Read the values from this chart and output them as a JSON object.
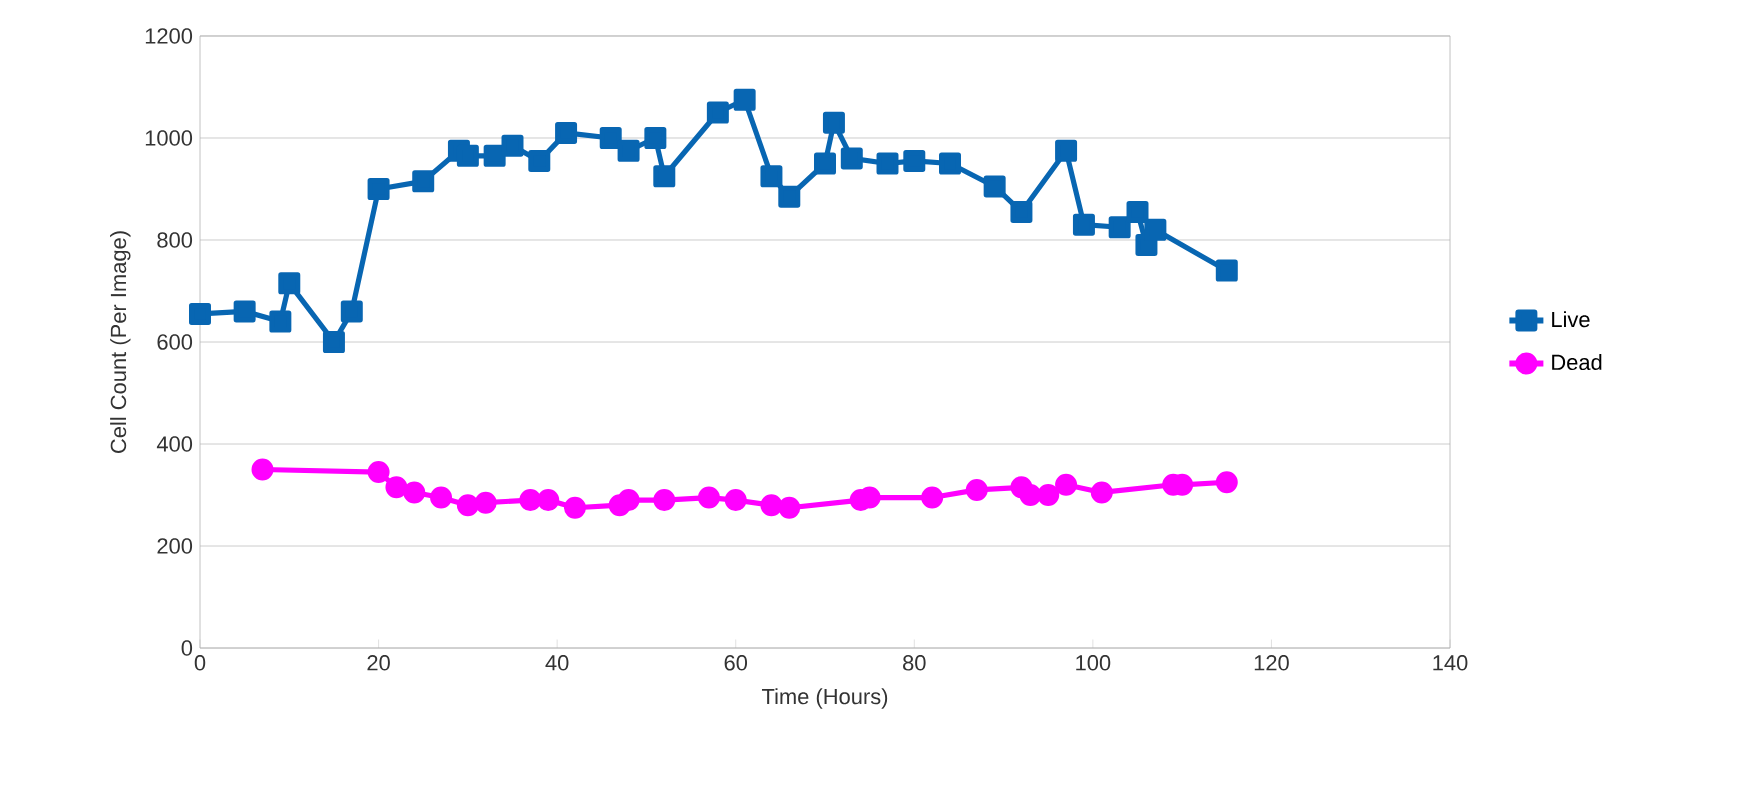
{
  "chart_data": {
    "type": "line",
    "xlabel": "Time (Hours)",
    "ylabel": "Cell Count (Per Image)",
    "xlim": [
      0,
      140
    ],
    "xticks": [
      0,
      20,
      40,
      60,
      80,
      100,
      120,
      140
    ],
    "ylim": [
      0,
      1200
    ],
    "yticks": [
      0,
      200,
      400,
      600,
      800,
      1000,
      1200
    ],
    "grid": "y",
    "legend": "right",
    "line_style": "solid",
    "series": [
      {
        "name": "Live",
        "color": "#0866b2",
        "marker": "square",
        "x": [
          0,
          5,
          9,
          10,
          15,
          17,
          20,
          25,
          29,
          30,
          33,
          35,
          38,
          41,
          46,
          48,
          51,
          52,
          58,
          61,
          64,
          66,
          70,
          71,
          73,
          77,
          80,
          84,
          89,
          92,
          97,
          99,
          103,
          105,
          106,
          107,
          115
        ],
        "values": [
          655,
          660,
          640,
          715,
          600,
          660,
          900,
          915,
          975,
          965,
          965,
          985,
          955,
          1010,
          1000,
          975,
          1000,
          925,
          1050,
          1075,
          925,
          885,
          950,
          1030,
          960,
          950,
          955,
          950,
          905,
          855,
          975,
          830,
          825,
          855,
          790,
          820,
          740
        ]
      },
      {
        "name": "Dead",
        "color": "#ff00ff",
        "marker": "circle",
        "x": [
          7,
          20,
          22,
          24,
          27,
          30,
          32,
          37,
          39,
          42,
          47,
          48,
          52,
          57,
          60,
          64,
          66,
          74,
          75,
          82,
          87,
          92,
          93,
          95,
          97,
          101,
          109,
          110,
          115
        ],
        "values": [
          350,
          345,
          315,
          305,
          295,
          280,
          285,
          290,
          290,
          275,
          280,
          290,
          290,
          295,
          290,
          280,
          275,
          290,
          295,
          295,
          310,
          315,
          300,
          300,
          320,
          305,
          320,
          320,
          325
        ]
      }
    ]
  }
}
